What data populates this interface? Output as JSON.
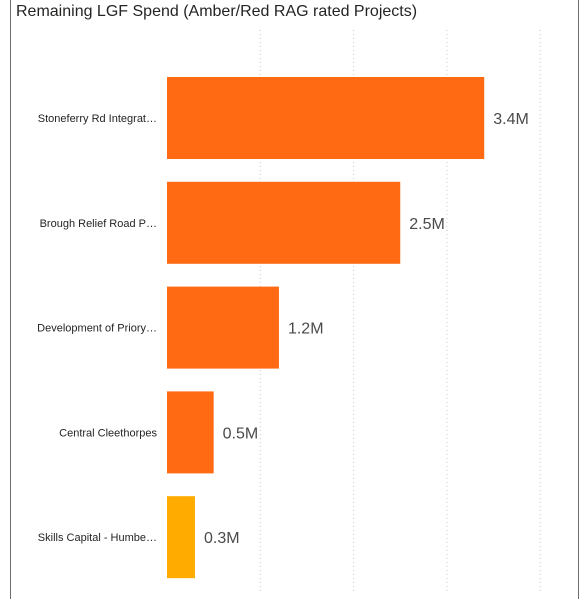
{
  "chart_data": {
    "type": "bar",
    "orientation": "horizontal",
    "title": "Remaining LGF Spend (Amber/Red RAG rated Projects)",
    "categories": [
      "Stoneferry Rd Integrat…",
      "Brough Relief Road P…",
      "Development of Priory…",
      "Central Cleethorpes",
      "Skills Capital - Humbe…"
    ],
    "values": [
      3.4,
      2.5,
      1.2,
      0.5,
      0.3
    ],
    "value_labels": [
      "3.4M",
      "2.5M",
      "1.2M",
      "0.5M",
      "0.3M"
    ],
    "bar_colors": [
      "#FF6A13",
      "#FF6A13",
      "#FF6A13",
      "#FF6A13",
      "#FFAB00"
    ],
    "xlim": [
      0,
      4
    ],
    "grid": "vertical dotted",
    "xlabel": "",
    "ylabel": ""
  }
}
